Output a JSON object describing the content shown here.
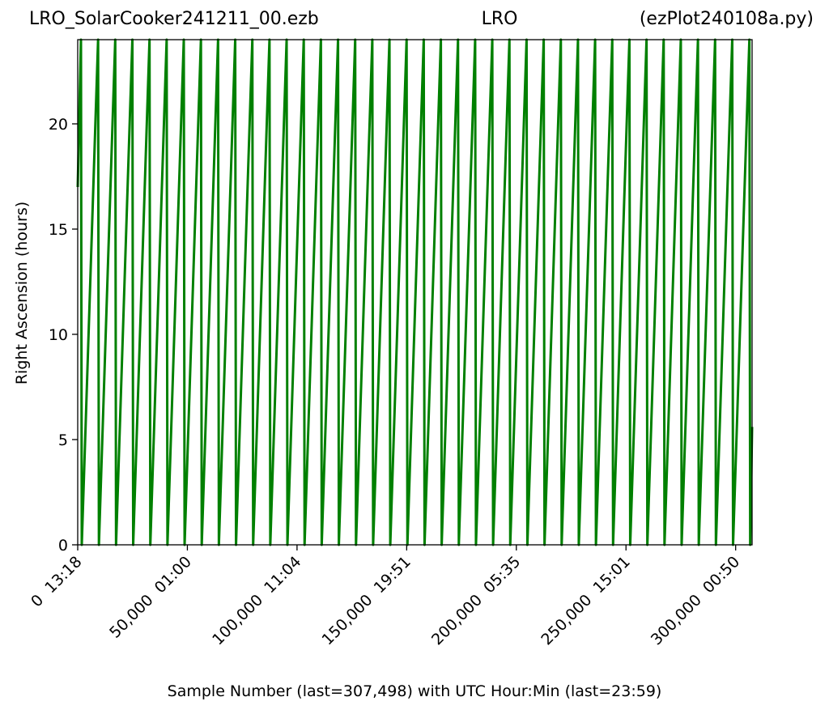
{
  "chart_data": {
    "type": "line",
    "title_left": "LRO_SolarCooker241211_00.ezb",
    "title": "LRO",
    "title_right": "(ezPlot240108a.py)",
    "x_label": "Sample Number (last=307,498) with UTC Hour:Min (last=23:59)",
    "y_label": "Right Ascension (hours)",
    "xlim": [
      0,
      307498
    ],
    "ylim": [
      0,
      24
    ],
    "xticks": [
      {
        "value": 0,
        "label": "0  13:18"
      },
      {
        "value": 50000,
        "label": "50,000  01:00"
      },
      {
        "value": 100000,
        "label": "100,000  11:04"
      },
      {
        "value": 150000,
        "label": "150,000  19:51"
      },
      {
        "value": 200000,
        "label": "200,000  05:35"
      },
      {
        "value": 250000,
        "label": "250,000  15:01"
      },
      {
        "value": 300000,
        "label": "300,000  00:50"
      }
    ],
    "yticks": [
      0,
      5,
      10,
      15,
      20
    ],
    "x": [
      0,
      1475,
      1845,
      9290,
      9660,
      17105,
      17475,
      24920,
      25290,
      32735,
      33105,
      40550,
      40920,
      48365,
      48735,
      56180,
      56550,
      63995,
      64365,
      71810,
      72180,
      79625,
      79995,
      87440,
      87810,
      95255,
      95625,
      103070,
      103440,
      110885,
      111255,
      118700,
      119070,
      126515,
      126885,
      134330,
      134700,
      142145,
      142515,
      149960,
      150330,
      157775,
      158145,
      165590,
      165960,
      173405,
      173775,
      181220,
      181590,
      189035,
      189405,
      196850,
      197220,
      204665,
      205035,
      212480,
      212850,
      220295,
      220665,
      228110,
      228480,
      235925,
      236295,
      243740,
      244110,
      251555,
      251925,
      259370,
      259740,
      267185,
      267555,
      275000,
      275370,
      282815,
      283185,
      290630,
      291000,
      298445,
      298815,
      306260,
      306630,
      307498
    ],
    "series": [
      {
        "color": "#008000",
        "values": [
          17,
          24,
          0,
          24,
          0,
          24,
          0,
          24,
          0,
          24,
          0,
          24,
          0,
          24,
          0,
          24,
          0,
          24,
          0,
          24,
          0,
          24,
          0,
          24,
          0,
          24,
          0,
          24,
          0,
          24,
          0,
          24,
          0,
          24,
          0,
          24,
          0,
          24,
          0,
          24,
          0,
          24,
          0,
          24,
          0,
          24,
          0,
          24,
          0,
          24,
          0,
          24,
          0,
          24,
          0,
          24,
          0,
          24,
          0,
          24,
          0,
          24,
          0,
          24,
          0,
          24,
          0,
          24,
          0,
          24,
          0,
          24,
          0,
          24,
          0,
          24,
          0,
          24,
          0,
          24,
          0,
          5.6
        ]
      }
    ]
  }
}
